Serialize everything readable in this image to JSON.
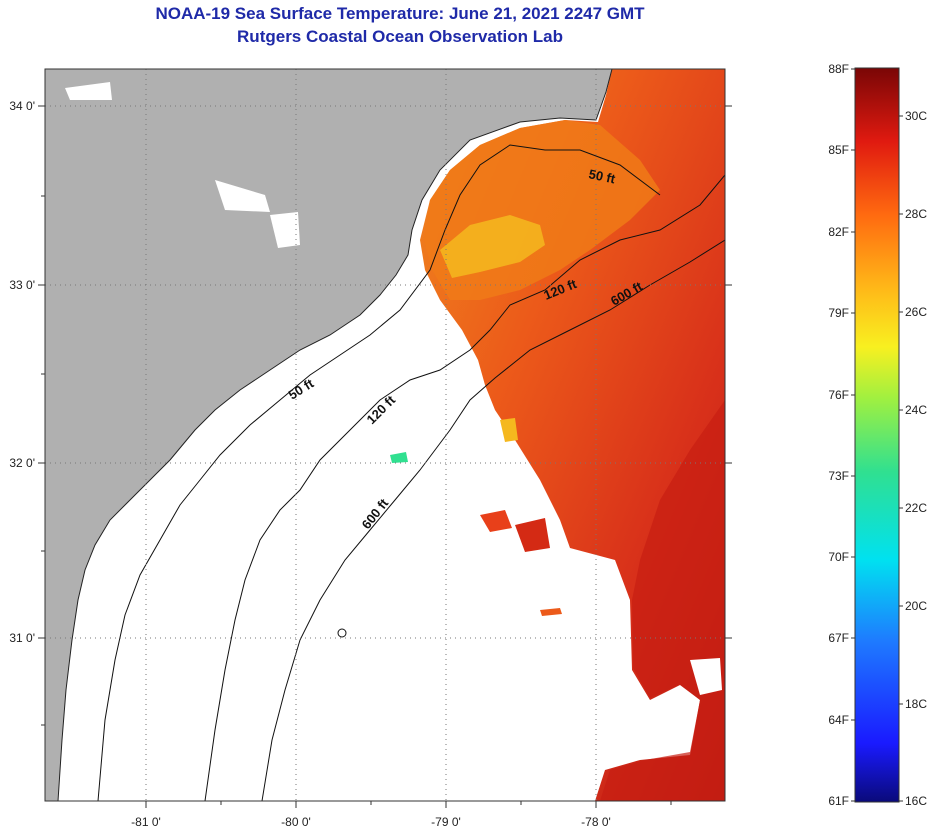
{
  "header": {
    "title": "NOAA-19 Sea Surface Temperature:  June 21, 2021 2247 GMT",
    "subtitle": "Rutgers Coastal Ocean Observation Lab"
  },
  "map": {
    "lon_labels": [
      "-81 0'",
      "-80 0'",
      "-79 0'",
      "-78 0'"
    ],
    "lat_labels": [
      "34 0'",
      "33 0'",
      "32 0'",
      "31 0'"
    ],
    "contours": [
      {
        "label": "50 ft"
      },
      {
        "label": "120 ft"
      },
      {
        "label": "600 ft"
      },
      {
        "label": "50 ft"
      },
      {
        "label": "120 ft"
      },
      {
        "label": "600 ft"
      }
    ],
    "colors": {
      "land": "#b0b0b0",
      "cloud": "#ffffff",
      "warm_sst": "#e8401a",
      "hot_sst": "#c81e12",
      "mid_sst": "#f07a18",
      "cool_sst": "#f5b81e"
    }
  },
  "colorbar": {
    "fahrenheit_labels": [
      "88F",
      "85F",
      "82F",
      "79F",
      "76F",
      "73F",
      "70F",
      "67F",
      "64F",
      "61F"
    ],
    "celsius_labels": [
      "30C",
      "28C",
      "26C",
      "24C",
      "22C",
      "20C",
      "18C",
      "16C"
    ]
  }
}
